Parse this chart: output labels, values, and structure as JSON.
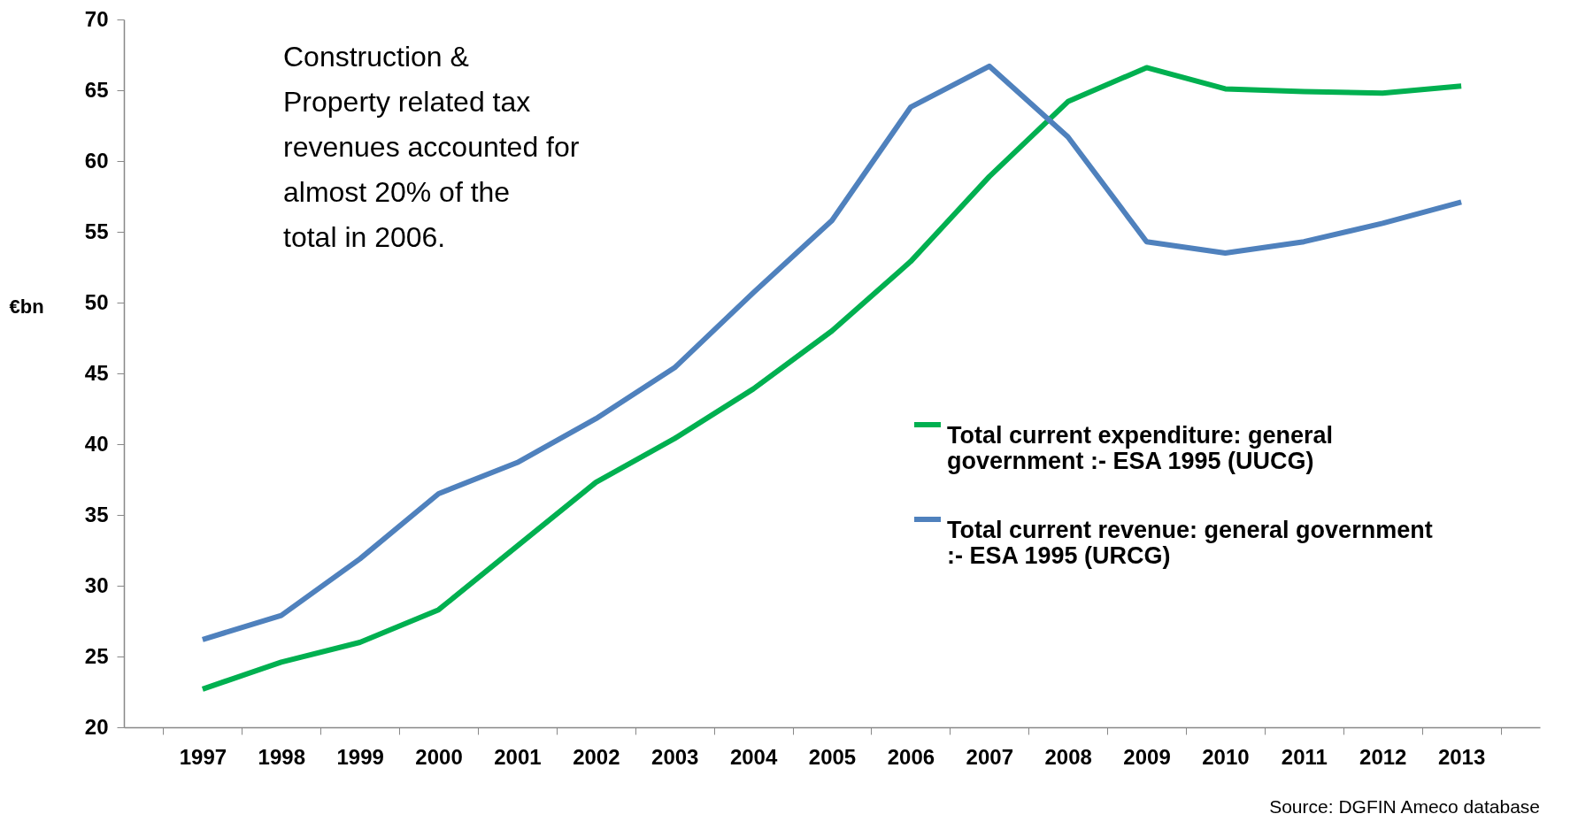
{
  "chart_data": {
    "type": "line",
    "ylabel": "€bn",
    "categories": [
      "1997",
      "1998",
      "1999",
      "2000",
      "2001",
      "2002",
      "2003",
      "2004",
      "2005",
      "2006",
      "2007",
      "2008",
      "2009",
      "2010",
      "2011",
      "2012",
      "2013"
    ],
    "series": [
      {
        "name": "Total current expenditure: general government :- ESA 1995  (UUCG)",
        "color": "#00b050",
        "values": [
          22.7,
          24.6,
          26.0,
          28.3,
          32.8,
          37.3,
          40.4,
          43.9,
          48.0,
          52.9,
          58.9,
          64.2,
          66.6,
          65.1,
          64.9,
          64.8,
          65.3
        ]
      },
      {
        "name": "Total current revenue: general government :- ESA 1995  (URCG)",
        "color": "#4f81bd",
        "values": [
          26.2,
          27.9,
          31.9,
          36.5,
          38.7,
          41.8,
          45.4,
          50.7,
          55.8,
          63.8,
          66.7,
          61.7,
          54.3,
          53.5,
          54.3,
          55.6,
          57.1
        ]
      }
    ],
    "ylim": [
      20,
      70
    ],
    "yticks": [
      20,
      25,
      30,
      35,
      40,
      45,
      50,
      55,
      60,
      65,
      70
    ],
    "grid": false,
    "legend": "right",
    "marker": "none",
    "line_style": "solid",
    "annotations": [
      "Construction & Property related tax revenues accounted for almost 20% of the total in 2006.",
      "Source: DGFIN Ameco database"
    ]
  }
}
